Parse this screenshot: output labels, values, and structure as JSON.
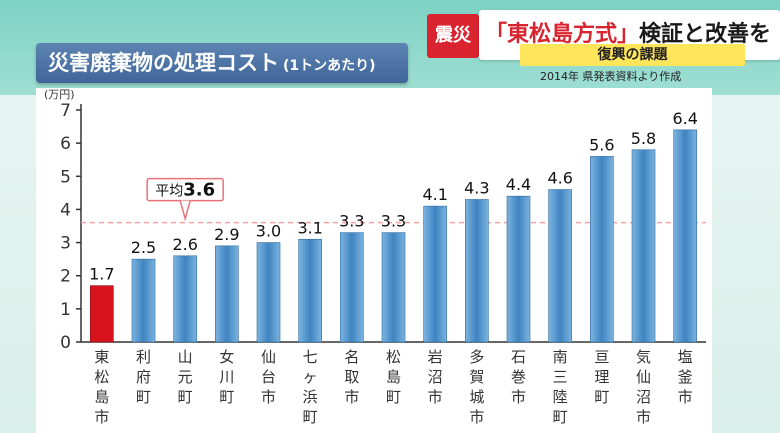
{
  "header": {
    "title": "災害廃棄物の処理コスト",
    "title_sub": "(1トンあたり)",
    "news_tag": "震災",
    "news_quote_open": "「",
    "news_highlight": "東松島方式",
    "news_quote_close": "」",
    "news_rest": "検証と改善を",
    "news_subtitle": "復興の課題",
    "source": "2014年 県発表資料より作成"
  },
  "chart_data": {
    "type": "bar",
    "title": "災害廃棄物の処理コスト(1トンあたり)",
    "ylabel": "(万円)",
    "ylim": [
      0,
      7
    ],
    "yticks": [
      0,
      1,
      2,
      3,
      4,
      5,
      6,
      7
    ],
    "grid": false,
    "categories": [
      "東松島市",
      "利府町",
      "山元町",
      "女川町",
      "仙台市",
      "七ヶ浜町",
      "名取市",
      "松島町",
      "岩沼市",
      "多賀城市",
      "石巻市",
      "南三陸町",
      "亘理町",
      "気仙沼市",
      "塩釜市"
    ],
    "values": [
      1.7,
      2.5,
      2.6,
      2.9,
      3.0,
      3.1,
      3.3,
      3.3,
      4.1,
      4.3,
      4.4,
      4.6,
      5.6,
      5.8,
      6.4
    ],
    "value_labels": [
      "1.7",
      "2.5",
      "2.6",
      "2.9",
      "3.0",
      "3.1",
      "3.3",
      "3.3",
      "4.1",
      "4.3",
      "4.4",
      "4.6",
      "5.6",
      "5.8",
      "6.4"
    ],
    "highlight_index": 0,
    "average": {
      "value": 3.6,
      "label_prefix": "平均",
      "label_value": "3.6"
    }
  },
  "colors": {
    "bar": "#3f84c1",
    "bar_light": "#7bb4e0",
    "highlight": "#d7141e",
    "average_line": "#f2a3a3",
    "average_box_border": "#e5727a",
    "axis": "#333333"
  }
}
